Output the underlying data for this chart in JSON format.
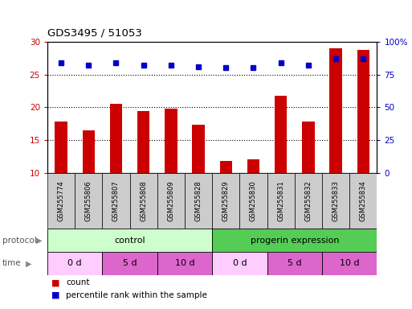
{
  "title": "GDS3495 / 51053",
  "samples": [
    "GSM255774",
    "GSM255806",
    "GSM255807",
    "GSM255808",
    "GSM255809",
    "GSM255828",
    "GSM255829",
    "GSM255830",
    "GSM255831",
    "GSM255832",
    "GSM255833",
    "GSM255834"
  ],
  "bar_values": [
    17.8,
    16.5,
    20.6,
    19.5,
    19.8,
    17.4,
    11.8,
    12.1,
    21.8,
    17.8,
    29.0,
    28.8
  ],
  "dot_values_pct": [
    84,
    82,
    84,
    82,
    82,
    81,
    80,
    80,
    84,
    82,
    87,
    87
  ],
  "ylim_left": [
    10,
    30
  ],
  "ylim_right": [
    0,
    100
  ],
  "yticks_left": [
    10,
    15,
    20,
    25,
    30
  ],
  "yticks_right": [
    0,
    25,
    50,
    75,
    100
  ],
  "bar_color": "#cc0000",
  "dot_color": "#0000cc",
  "protocol_groups": [
    {
      "label": "control",
      "start": 0,
      "end": 6,
      "color": "#ccffcc"
    },
    {
      "label": "progerin expression",
      "start": 6,
      "end": 12,
      "color": "#55cc55"
    }
  ],
  "time_groups": [
    {
      "label": "0 d",
      "start": 0,
      "end": 2,
      "color": "#ffccff"
    },
    {
      "label": "5 d",
      "start": 2,
      "end": 4,
      "color": "#dd66cc"
    },
    {
      "label": "10 d",
      "start": 4,
      "end": 6,
      "color": "#dd66cc"
    },
    {
      "label": "0 d",
      "start": 6,
      "end": 8,
      "color": "#ffccff"
    },
    {
      "label": "5 d",
      "start": 8,
      "end": 10,
      "color": "#dd66cc"
    },
    {
      "label": "10 d",
      "start": 10,
      "end": 12,
      "color": "#dd66cc"
    }
  ],
  "legend_count_label": "count",
  "legend_pct_label": "percentile rank within the sample",
  "xlabel_protocol": "protocol",
  "xlabel_time": "time",
  "background_color": "#ffffff",
  "label_bg_color": "#cccccc",
  "grid_dotted_at": [
    15,
    20,
    25
  ],
  "bar_width": 0.45
}
